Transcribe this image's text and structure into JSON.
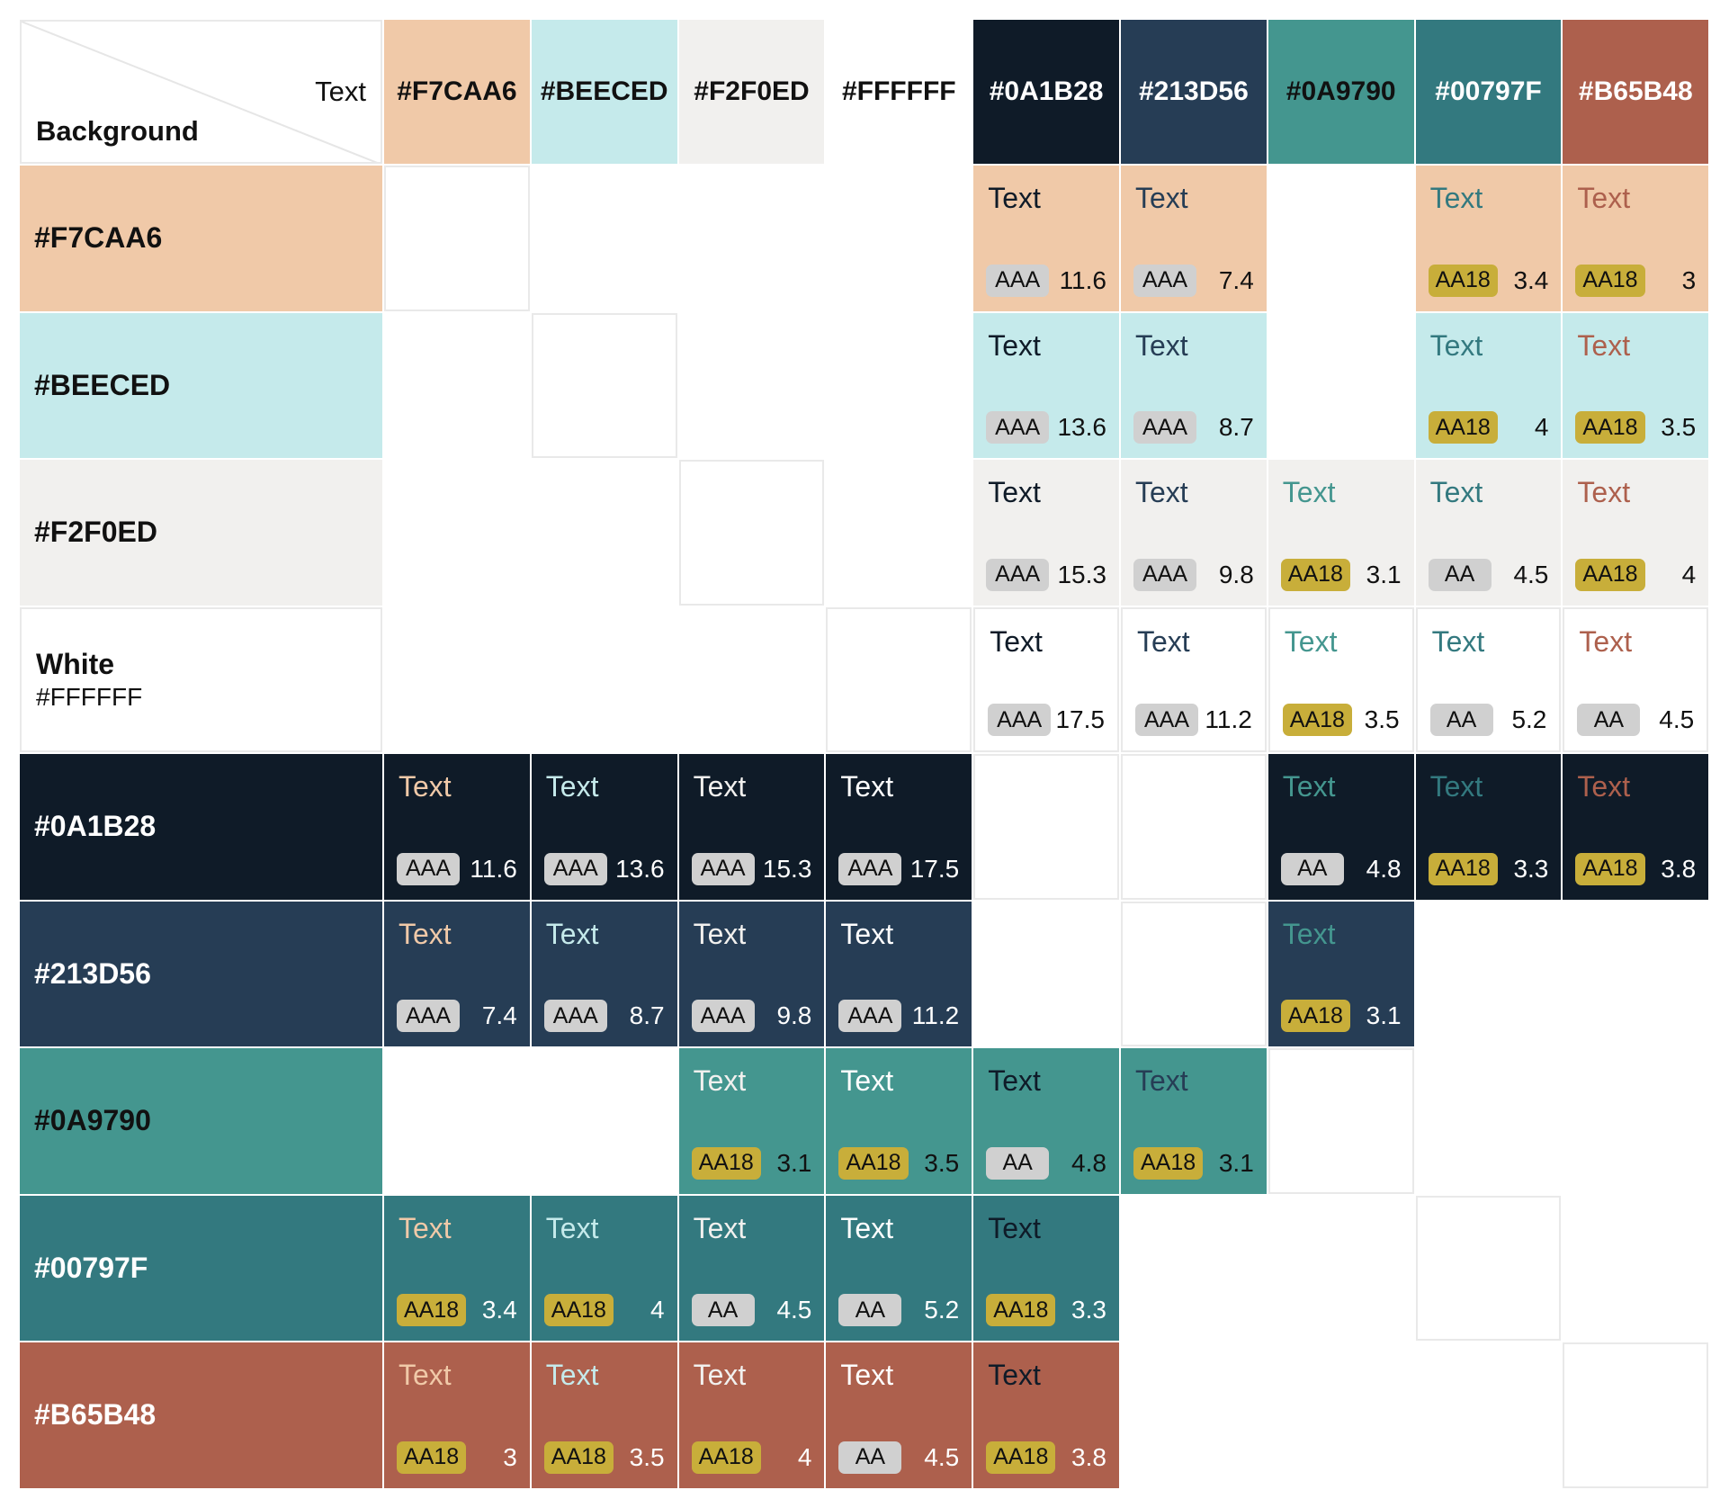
{
  "corner": {
    "text_label": "Text",
    "background_label": "Background"
  },
  "colors": [
    {
      "hex": "#F7CAA6",
      "bg": "#F0C9A8",
      "fg": "#111111",
      "label": "#F7CAA6"
    },
    {
      "hex": "#BEECED",
      "bg": "#C5EAEB",
      "fg": "#111111",
      "label": "#BEECED"
    },
    {
      "hex": "#F2F0ED",
      "bg": "#F1F0EE",
      "fg": "#111111",
      "label": "#F2F0ED"
    },
    {
      "hex": "#FFFFFF",
      "bg": "#FFFFFF",
      "fg": "#111111",
      "label": "White",
      "sub": "#FFFFFF"
    },
    {
      "hex": "#0A1B28",
      "bg": "#0F1B28",
      "fg": "#FFFFFF",
      "label": "#0A1B28"
    },
    {
      "hex": "#213D56",
      "bg": "#263D55",
      "fg": "#FFFFFF",
      "label": "#213D56"
    },
    {
      "hex": "#0A9790",
      "bg": "#44968F",
      "fg": "#111111",
      "label": "#0A9790"
    },
    {
      "hex": "#00797F",
      "bg": "#33797F",
      "fg": "#FFFFFF",
      "label": "#00797F"
    },
    {
      "hex": "#B65B48",
      "bg": "#AD604D",
      "fg": "#FFFFFF",
      "label": "#B65B48"
    }
  ],
  "headers": [
    "#F7CAA6",
    "#BEECED",
    "#F2F0ED",
    "#FFFFFF",
    "#0A1B28",
    "#213D56",
    "#0A9790",
    "#00797F",
    "#B65B48"
  ],
  "sample_text": "Text",
  "badge_styles": {
    "AAA": "#D0D0D0",
    "AA": "#D0D0D0",
    "AA18": "#C8AE3A"
  },
  "matrix": [
    [
      null,
      null,
      null,
      null,
      "empty",
      "empty",
      "empty",
      "empty",
      "empty"
    ],
    [
      null,
      null,
      null,
      null,
      "empty",
      "empty",
      "empty",
      "empty",
      "empty"
    ],
    [
      null,
      null,
      null,
      null,
      "empty",
      "empty",
      "empty",
      "empty",
      "empty"
    ],
    [
      null,
      null,
      null,
      null,
      "empty",
      "empty",
      "empty",
      "empty",
      "empty"
    ],
    [
      null,
      null,
      null,
      null,
      null,
      null,
      null,
      null,
      null
    ],
    [
      null,
      null,
      null,
      null,
      null,
      null,
      null,
      "blank",
      "blank"
    ],
    [
      null,
      null,
      null,
      null,
      null,
      null,
      null,
      null,
      null
    ],
    [
      null,
      null,
      null,
      null,
      null,
      "blank",
      "blank",
      null,
      "blank"
    ],
    [
      null,
      null,
      null,
      null,
      null,
      "blank",
      "blank",
      "blank",
      null
    ]
  ],
  "rows": [
    {
      "cells": [
        "empty",
        "blank",
        "blank",
        "blank",
        {
          "level": "AAA",
          "ratio": "11.6"
        },
        {
          "level": "AAA",
          "ratio": "7.4"
        },
        "blank",
        {
          "level": "AA18",
          "ratio": "3.4"
        },
        {
          "level": "AA18",
          "ratio": "3"
        }
      ]
    },
    {
      "cells": [
        "blank",
        "empty",
        "blank",
        "blank",
        {
          "level": "AAA",
          "ratio": "13.6"
        },
        {
          "level": "AAA",
          "ratio": "8.7"
        },
        "blank",
        {
          "level": "AA18",
          "ratio": "4"
        },
        {
          "level": "AA18",
          "ratio": "3.5"
        }
      ]
    },
    {
      "cells": [
        "blank",
        "blank",
        "empty",
        "blank",
        {
          "level": "AAA",
          "ratio": "15.3"
        },
        {
          "level": "AAA",
          "ratio": "9.8"
        },
        {
          "level": "AA18",
          "ratio": "3.1"
        },
        {
          "level": "AA",
          "ratio": "4.5"
        },
        {
          "level": "AA18",
          "ratio": "4"
        }
      ]
    },
    {
      "cells": [
        "blank",
        "blank",
        "blank",
        "empty",
        {
          "level": "AAA",
          "ratio": "17.5"
        },
        {
          "level": "AAA",
          "ratio": "11.2"
        },
        {
          "level": "AA18",
          "ratio": "3.5"
        },
        {
          "level": "AA",
          "ratio": "5.2"
        },
        {
          "level": "AA",
          "ratio": "4.5"
        }
      ]
    },
    {
      "cells": [
        {
          "level": "AAA",
          "ratio": "11.6"
        },
        {
          "level": "AAA",
          "ratio": "13.6"
        },
        {
          "level": "AAA",
          "ratio": "15.3"
        },
        {
          "level": "AAA",
          "ratio": "17.5"
        },
        "empty",
        "empty",
        {
          "level": "AA",
          "ratio": "4.8"
        },
        {
          "level": "AA18",
          "ratio": "3.3"
        },
        {
          "level": "AA18",
          "ratio": "3.8"
        }
      ]
    },
    {
      "cells": [
        {
          "level": "AAA",
          "ratio": "7.4"
        },
        {
          "level": "AAA",
          "ratio": "8.7"
        },
        {
          "level": "AAA",
          "ratio": "9.8"
        },
        {
          "level": "AAA",
          "ratio": "11.2"
        },
        "blank",
        "empty",
        {
          "level": "AA18",
          "ratio": "3.1"
        },
        "blank",
        "blank"
      ]
    },
    {
      "cells": [
        "blank",
        "blank",
        {
          "level": "AA18",
          "ratio": "3.1"
        },
        {
          "level": "AA18",
          "ratio": "3.5"
        },
        {
          "level": "AA",
          "ratio": "4.8"
        },
        {
          "level": "AA18",
          "ratio": "3.1"
        },
        "empty",
        "blank",
        "blank"
      ]
    },
    {
      "cells": [
        {
          "level": "AA18",
          "ratio": "3.4"
        },
        {
          "level": "AA18",
          "ratio": "4"
        },
        {
          "level": "AA",
          "ratio": "4.5"
        },
        {
          "level": "AA",
          "ratio": "5.2"
        },
        {
          "level": "AA18",
          "ratio": "3.3"
        },
        "blank",
        "blank",
        "empty",
        "blank"
      ]
    },
    {
      "cells": [
        {
          "level": "AA18",
          "ratio": "3"
        },
        {
          "level": "AA18",
          "ratio": "3.5"
        },
        {
          "level": "AA18",
          "ratio": "4"
        },
        {
          "level": "AA",
          "ratio": "4.5"
        },
        {
          "level": "AA18",
          "ratio": "3.8"
        },
        "blank",
        "blank",
        "blank",
        "empty"
      ]
    }
  ]
}
